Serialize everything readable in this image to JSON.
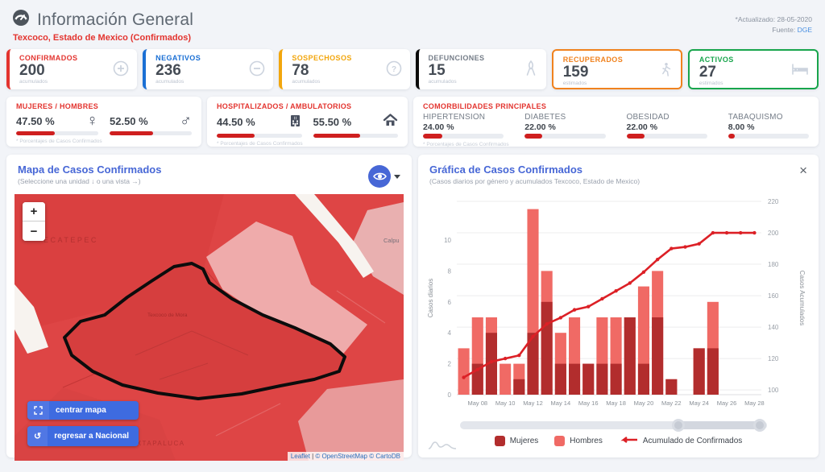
{
  "header": {
    "title": "Información General",
    "subtitle": "Texcoco, Estado de Mexico (Confirmados)",
    "updated": "*Actualizado: 28-05-2020",
    "source_label": "Fuente: ",
    "source_link": "DGE"
  },
  "stats": {
    "cards": [
      {
        "label": "CONFIRMADOS",
        "value": "200",
        "unit": "acumulados",
        "color": "#e3342f",
        "icon": "plus-circle"
      },
      {
        "label": "NEGATIVOS",
        "value": "236",
        "unit": "acumulados",
        "color": "#1a6fd4",
        "icon": "minus-circle"
      },
      {
        "label": "SOSPECHOSOS",
        "value": "78",
        "unit": "acumulados",
        "color": "#f2a60d",
        "icon": "question-circle"
      },
      {
        "label": "DEFUNCIONES",
        "value": "15",
        "unit": "acumulados",
        "color": "#0a0a0a",
        "label_color": "#757d88",
        "icon": "ribbon"
      },
      {
        "label": "RECUPERADOS",
        "value": "159",
        "unit": "estimados",
        "color": "#f0821e",
        "icon": "walking-person"
      },
      {
        "label": "ACTIVOS",
        "value": "27",
        "unit": "estimados",
        "color": "#18a54c",
        "icon": "hospital-bed"
      }
    ]
  },
  "gender": {
    "title": "MUJERES / HOMBRES",
    "female_pct": "47.50 %",
    "female_value": 47.5,
    "female_symbol": "♀",
    "male_pct": "52.50 %",
    "male_value": 52.5,
    "male_symbol": "♂",
    "footnote": "* Porcentajes de Casos Confirmados"
  },
  "hospital": {
    "title": "HOSPITALIZADOS / AMBULATORIOS",
    "hospitalized_pct": "44.50 %",
    "hospitalized_value": 44.5,
    "ambulatory_pct": "55.50 %",
    "ambulatory_value": 55.5,
    "footnote": "* Porcentajes de Casos Confirmados"
  },
  "comorbidities": {
    "title": "COMORBILIDADES PRINCIPALES",
    "footnote": "* Porcentajes de Casos Confirmados",
    "items": [
      {
        "name": "HIPERTENSION",
        "pct": "24.00 %",
        "value": 24
      },
      {
        "name": "DIABETES",
        "pct": "22.00 %",
        "value": 22
      },
      {
        "name": "OBESIDAD",
        "pct": "22.00 %",
        "value": 22
      },
      {
        "name": "TABAQUISMO",
        "pct": "8.00 %",
        "value": 8
      }
    ]
  },
  "map_panel": {
    "title": "Mapa de Casos Confirmados",
    "subtitle": "(Seleccione una unidad ↓ o una vista →)",
    "zoom_in": "+",
    "zoom_out": "−",
    "buttons": [
      {
        "label": "centrar mapa",
        "icon": "center-map"
      },
      {
        "label": "regresar a Nacional",
        "icon": "undo"
      }
    ],
    "labels": [
      {
        "text": "ECATEPEC"
      },
      {
        "text": "Calpu"
      },
      {
        "text": "IXTAPALUCA"
      },
      {
        "text": "Texcoco de Mora"
      }
    ],
    "attribution": {
      "leaflet": "Leaflet",
      "sep": " | ",
      "osm": "© OpenStreetMap",
      "cartodb": "© CartoDB"
    }
  },
  "chart_panel": {
    "title": "Gráfica de Casos Confirmados",
    "subtitle": "(Casos diarios por género y acumulados Texcoco, Estado de Mexico)",
    "close": "×"
  },
  "chart_data": {
    "type": "bar",
    "bar_mode": "overlay",
    "title": "Gráfica de Casos Confirmados",
    "subtitle": "(Casos diarios por género y acumulados Texcoco, Estado de Mexico)",
    "x": [
      "May 07",
      "May 08",
      "May 09",
      "May 10",
      "May 11",
      "May 12",
      "May 13",
      "May 14",
      "May 15",
      "May 16",
      "May 17",
      "May 18",
      "May 19",
      "May 20",
      "May 21",
      "May 22",
      "May 23",
      "May 24",
      "May 25",
      "May 26",
      "May 27",
      "May 28"
    ],
    "x_tick_labels": [
      "May 08",
      "May 10",
      "May 12",
      "May 14",
      "May 16",
      "May 18",
      "May 20",
      "May 22",
      "May 24",
      "May 26",
      "May 28"
    ],
    "series": [
      {
        "name": "Hombres",
        "color": "#f06a65",
        "axis": "left",
        "values": [
          3,
          5,
          5,
          2,
          2,
          12,
          8,
          4,
          5,
          2,
          5,
          5,
          5,
          7,
          8,
          1,
          0,
          3,
          6,
          0,
          0,
          0
        ]
      },
      {
        "name": "Mujeres",
        "color": "#b22d2d",
        "axis": "left",
        "values": [
          0,
          2,
          4,
          0,
          1,
          4,
          6,
          2,
          2,
          2,
          2,
          2,
          5,
          2,
          5,
          1,
          0,
          3,
          3,
          0,
          0,
          0
        ]
      }
    ],
    "line_series": {
      "name": "Acumulado de Confirmados",
      "color": "#dc2026",
      "axis": "right",
      "values": [
        108,
        113,
        118,
        120,
        122,
        134,
        142,
        146,
        151,
        153,
        158,
        163,
        168,
        175,
        183,
        190,
        191,
        193,
        200,
        200,
        200,
        200
      ]
    },
    "ylabel_left": "Casos diarios",
    "ylabel_right": "Casos Acumulados",
    "yticks_left": [
      0,
      2,
      4,
      6,
      8,
      10
    ],
    "yticks_right": [
      100,
      120,
      140,
      160,
      180,
      200,
      220
    ],
    "ylim_left": [
      0,
      12.5
    ],
    "ylim_right": [
      97,
      220
    ],
    "grid": true,
    "legend_position": "bottom"
  }
}
